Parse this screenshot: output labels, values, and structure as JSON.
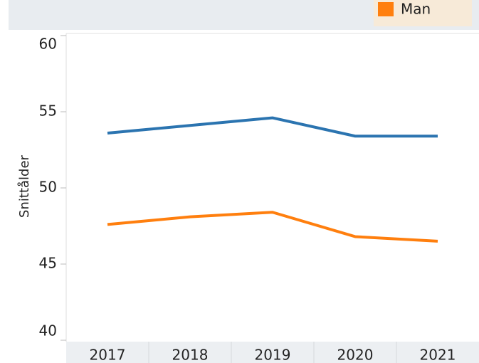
{
  "chart_data": {
    "type": "line",
    "y_label": "Snittålder",
    "categories": [
      "2017",
      "2018",
      "2019",
      "2020",
      "2021"
    ],
    "series": [
      {
        "color": "#2b74b0",
        "values": [
          53.6,
          54.1,
          54.6,
          53.4,
          53.4
        ]
      },
      {
        "name": "Man",
        "color": "#ff7f0e",
        "values": [
          47.6,
          48.1,
          48.4,
          46.8,
          46.5
        ]
      }
    ],
    "ylim": [
      40,
      60
    ],
    "yticks": [
      40,
      45,
      50,
      55,
      60
    ],
    "grid": false
  }
}
